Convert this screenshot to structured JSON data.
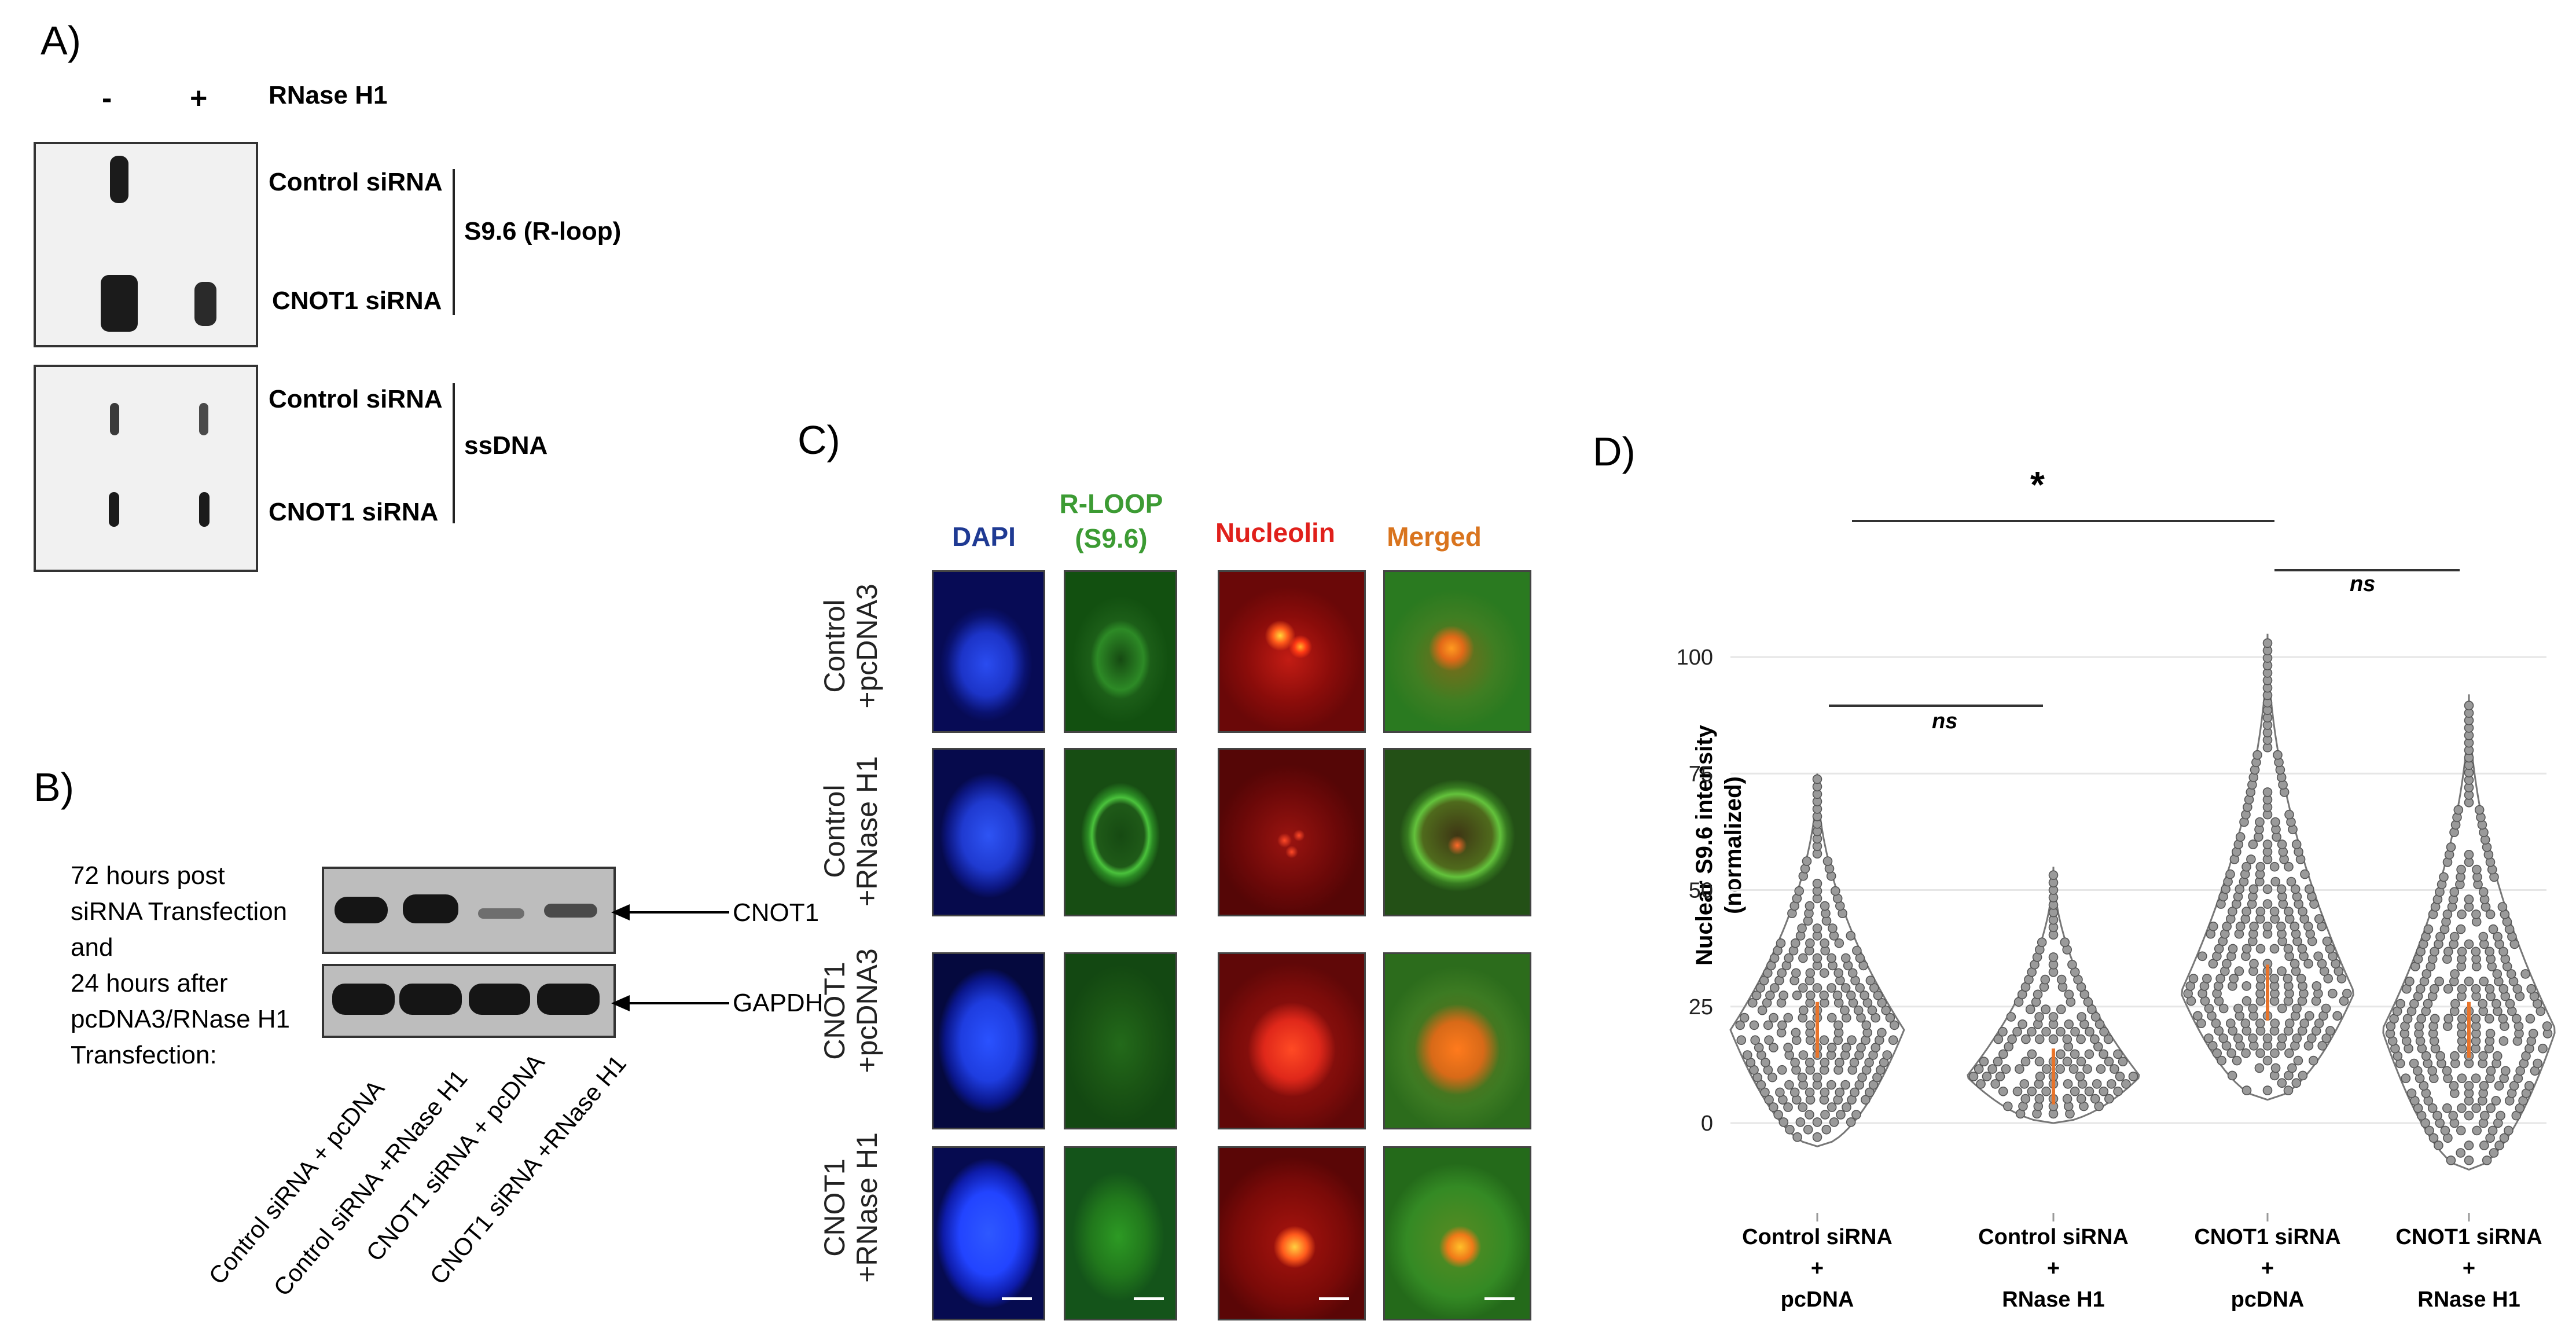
{
  "panelA": {
    "label": "A)",
    "minus": "-",
    "plus": "+",
    "treatment": "RNase H1",
    "top_rows": [
      "Control siRNA",
      "CNOT1 siRNA"
    ],
    "top_group": "S9.6 (R-loop)",
    "bottom_rows": [
      "Control siRNA",
      "CNOT1 siRNA"
    ],
    "bottom_group": "ssDNA"
  },
  "panelB": {
    "label": "B)",
    "condition_lines": [
      "72 hours post",
      "siRNA Transfection",
      "and",
      "24 hours after",
      "pcDNA3/RNase H1",
      "Transfection:"
    ],
    "proteins": [
      "CNOT1",
      "GAPDH"
    ],
    "lanes": [
      "Control siRNA + pcDNA",
      "Control siRNA +RNase H1",
      "CNOT1 siRNA + pcDNA",
      "CNOT1 siRNA +RNase H1"
    ]
  },
  "panelC": {
    "label": "C)",
    "columns": [
      {
        "lines": [
          "DAPI"
        ],
        "color": "#1f3a93"
      },
      {
        "lines": [
          "R-LOOP",
          "(S9.6)"
        ],
        "color": "#3c9b33"
      },
      {
        "lines": [
          "Nucleolin"
        ],
        "color": "#e0201b"
      },
      {
        "lines": [
          "Merged"
        ],
        "color": "#d9741e"
      }
    ],
    "rows": [
      [
        "Control",
        "+pcDNA3"
      ],
      [
        "Control",
        "+RNase H1"
      ],
      [
        "CNOT1",
        "+pcDNA3"
      ],
      [
        "CNOT1",
        "+RNase H1"
      ]
    ]
  },
  "panelD": {
    "label": "D)",
    "star": "*",
    "ns1": "ns",
    "ns2": "ns",
    "ylabel_lines": [
      "Nuclear S9.6 intensity",
      "(normalized)"
    ]
  },
  "chart_data": {
    "type": "violin",
    "title": "",
    "xlabel": "",
    "ylabel": "Nuclear S9.6 intensity (normalized)",
    "ylim": [
      0,
      100
    ],
    "yticks": [
      0,
      25,
      50,
      75,
      100
    ],
    "grid": true,
    "categories": [
      [
        "Control siRNA",
        "+",
        "pcDNA"
      ],
      [
        "Control siRNA",
        "+",
        "RNase H1"
      ],
      [
        "CNOT1 siRNA",
        "+",
        "pcDNA"
      ],
      [
        "CNOT1 siRNA",
        "+",
        "RNase H1"
      ]
    ],
    "series": [
      {
        "min": -5,
        "max": 75,
        "median": 20,
        "mean": 23
      },
      {
        "min": 0,
        "max": 55,
        "median": 10,
        "mean": 13
      },
      {
        "min": 5,
        "max": 105,
        "median": 28,
        "mean": 34
      },
      {
        "min": -10,
        "max": 92,
        "median": 20,
        "mean": 24
      }
    ],
    "annotations": [
      {
        "text": "*",
        "from": 1,
        "to": 3
      },
      {
        "text": "ns",
        "from": 1,
        "to": 2
      },
      {
        "text": "ns",
        "from": 3,
        "to": 4
      }
    ],
    "colors": {
      "points": "#8a8a8a",
      "median": "#e8742b"
    }
  }
}
